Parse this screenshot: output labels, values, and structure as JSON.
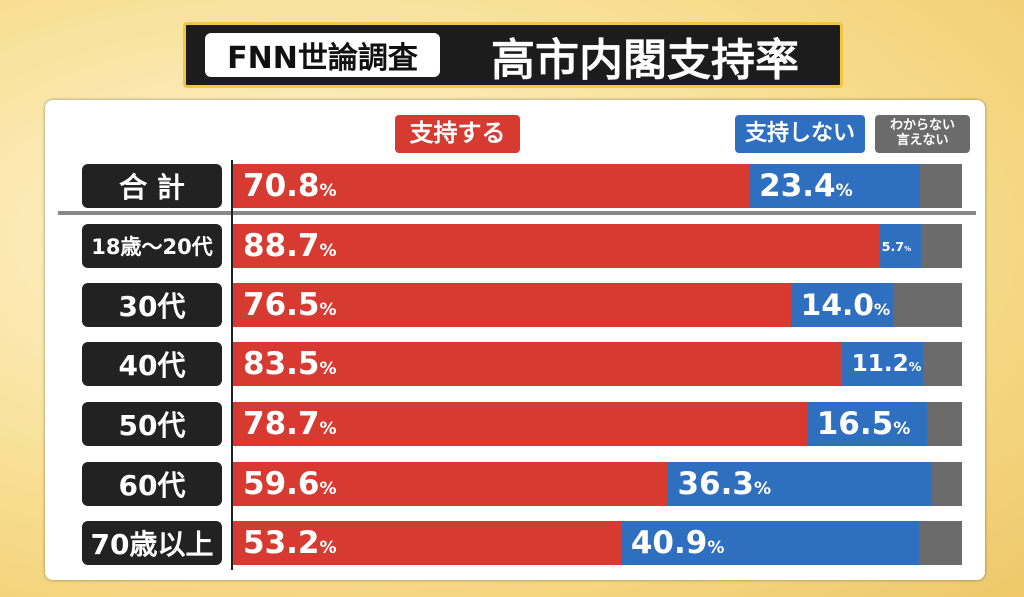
{
  "chart_data": {
    "type": "stacked-bar-horizontal",
    "badge": "FNN世論調査",
    "title": "高市内閣支持率",
    "categories": [
      "合 計",
      "18歳～20代",
      "30代",
      "40代",
      "50代",
      "60代",
      "70歳以上"
    ],
    "series": [
      {
        "name": "支持する",
        "color": "#d63a30",
        "values": [
          70.8,
          88.7,
          76.5,
          83.5,
          78.7,
          59.6,
          53.2
        ],
        "value_labels": [
          "70.8%",
          "88.7%",
          "76.5%",
          "83.5%",
          "78.7%",
          "59.6%",
          "53.2%"
        ]
      },
      {
        "name": "支持しない",
        "color": "#2f6fbf",
        "values": [
          23.4,
          5.7,
          14.0,
          11.2,
          16.5,
          36.3,
          40.9
        ],
        "value_labels": [
          "23.4%",
          "5.7%",
          "14.0%",
          "11.2%",
          "16.5%",
          "36.3%",
          "40.9%"
        ]
      },
      {
        "name": "わからない\n言えない",
        "color": "#6b6b6b",
        "values": [
          5.8,
          5.6,
          9.5,
          5.3,
          4.8,
          4.1,
          5.9
        ]
      }
    ],
    "xlim": [
      0,
      100
    ]
  }
}
